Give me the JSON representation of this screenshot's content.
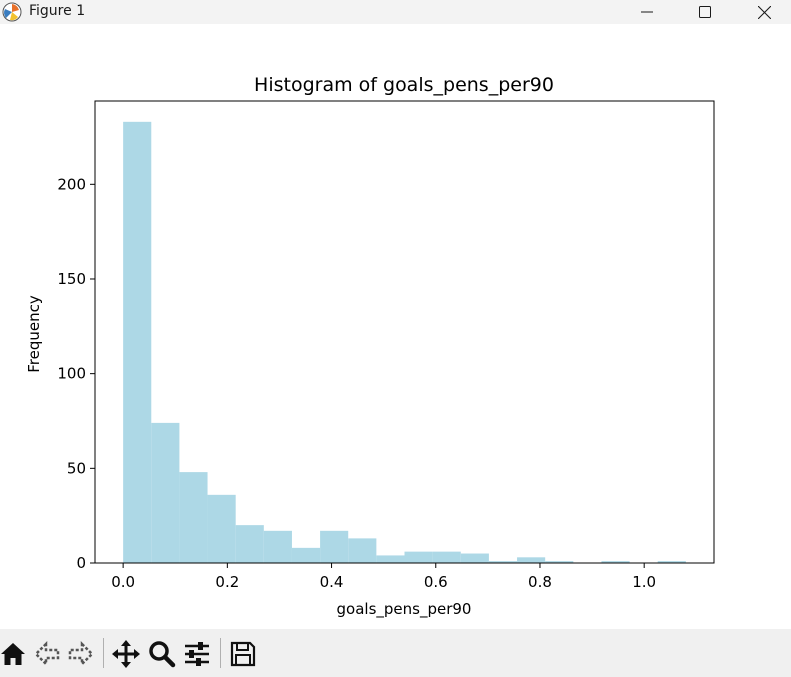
{
  "window": {
    "title": "Figure 1",
    "icons": [
      "matplotlib-icon",
      "minimize-icon",
      "maximize-icon",
      "close-icon"
    ]
  },
  "toolbar": {
    "buttons": [
      {
        "name": "home-button",
        "icon": "home-icon"
      },
      {
        "name": "back-button",
        "icon": "back-arrow-icon"
      },
      {
        "name": "forward-button",
        "icon": "forward-arrow-icon"
      },
      {
        "name": "pan-button",
        "icon": "move-icon"
      },
      {
        "name": "zoom-button",
        "icon": "zoom-icon"
      },
      {
        "name": "configure-subplots-button",
        "icon": "sliders-icon"
      },
      {
        "name": "save-button",
        "icon": "save-icon"
      }
    ]
  },
  "colors": {
    "bar": "#add8e6",
    "axes": "#000000",
    "titlebar": "#f3f3f3",
    "toolbar": "#f0f0f0"
  },
  "chart_data": {
    "type": "histogram",
    "title": "Histogram of goals_pens_per90",
    "xlabel": "goals_pens_per90",
    "ylabel": "Frequency",
    "xlim": [
      -0.054,
      1.134
    ],
    "ylim": [
      0,
      244
    ],
    "xticks": [
      0.0,
      0.2,
      0.4,
      0.6,
      0.8,
      1.0
    ],
    "xtick_labels": [
      "0.0",
      "0.2",
      "0.4",
      "0.6",
      "0.8",
      "1.0"
    ],
    "yticks": [
      0,
      50,
      100,
      150,
      200
    ],
    "ytick_labels": [
      "0",
      "50",
      "100",
      "150",
      "200"
    ],
    "bin_edges": [
      0.0,
      0.054,
      0.108,
      0.162,
      0.216,
      0.27,
      0.324,
      0.378,
      0.432,
      0.486,
      0.54,
      0.594,
      0.648,
      0.702,
      0.756,
      0.81,
      0.864,
      0.918,
      0.972,
      1.026,
      1.08
    ],
    "counts": [
      233,
      74,
      48,
      36,
      20,
      17,
      8,
      17,
      13,
      4,
      6,
      6,
      5,
      1,
      3,
      1,
      0,
      1,
      0,
      1
    ]
  }
}
